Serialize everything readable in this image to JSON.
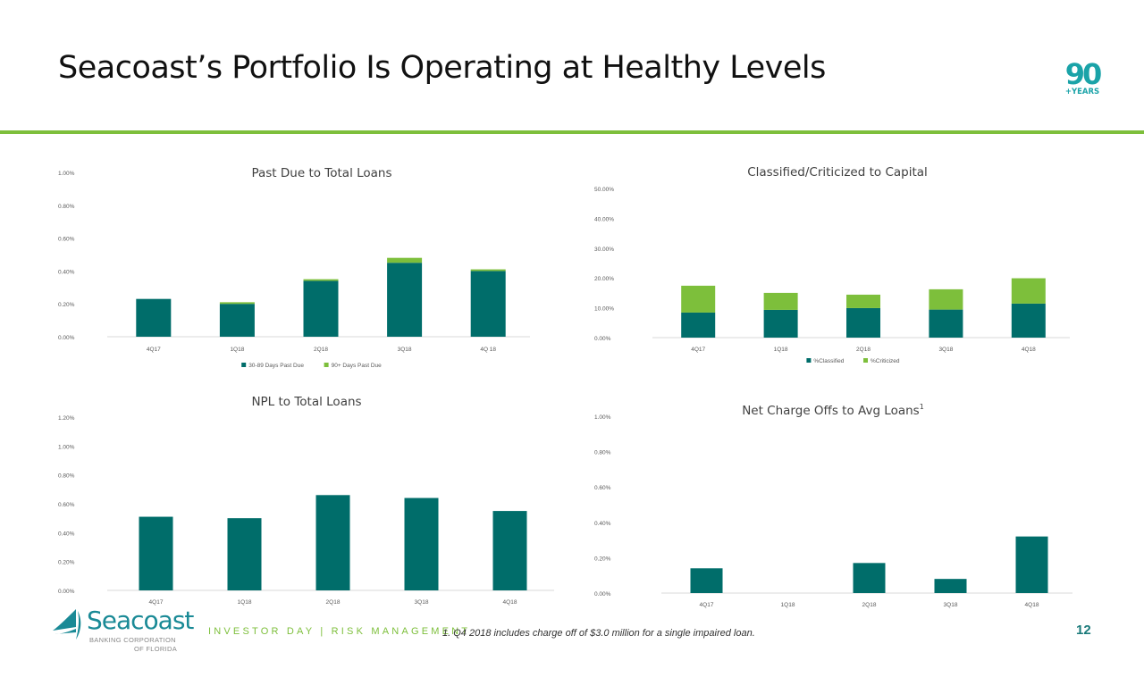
{
  "page": {
    "title": "Seacoast’s Portfolio Is Operating at Healthy Levels",
    "badge": {
      "number": "90",
      "text": "+YEARS"
    },
    "footer": {
      "company_name": "Seacoast",
      "company_sub1": "BANKING CORPORATION",
      "company_sub2": "OF FLORIDA",
      "section": "INVESTOR DAY | RISK MANAGEMENT",
      "footnote": "1. Q4 2018 includes charge off of $3.0 million for a single impaired loan.",
      "page_number": "12"
    }
  },
  "colors": {
    "teal": "#006d6a",
    "green": "#7dbf3b",
    "rule": "#7dbf3b",
    "axis_text": "#595959",
    "gridline": "#d9d9d9"
  },
  "chart_data": [
    {
      "id": "past-due",
      "type": "bar",
      "stacked": true,
      "title": "Past Due to Total Loans",
      "title_superscript": "",
      "categories": [
        "4Q17",
        "1Q18",
        "2Q18",
        "3Q18",
        "4Q 18"
      ],
      "series": [
        {
          "name": "30-89 Days Past Due",
          "color": "#006d6a",
          "values": [
            0.23,
            0.2,
            0.34,
            0.45,
            0.4
          ]
        },
        {
          "name": "90+ Days Past Due",
          "color": "#7dbf3b",
          "values": [
            0.0,
            0.01,
            0.01,
            0.03,
            0.01
          ]
        }
      ],
      "ylim": [
        0,
        1.0
      ],
      "yticks": [
        "0.00%",
        "0.20%",
        "0.40%",
        "0.60%",
        "0.80%",
        "1.00%"
      ],
      "ytick_values": [
        0,
        0.2,
        0.4,
        0.6,
        0.8,
        1.0
      ],
      "xlabel": "",
      "ylabel": "",
      "legend": "bottom",
      "grid": false
    },
    {
      "id": "classified",
      "type": "bar",
      "stacked": true,
      "title": "Classified/Criticized to Capital",
      "title_superscript": "",
      "categories": [
        "4Q17",
        "1Q18",
        "2Q18",
        "3Q18",
        "4Q18"
      ],
      "series": [
        {
          "name": "%Classified",
          "color": "#006d6a",
          "values": [
            8.4,
            9.3,
            9.9,
            9.4,
            11.4
          ]
        },
        {
          "name": "%Criticized",
          "color": "#7dbf3b",
          "values": [
            9.0,
            5.7,
            4.5,
            6.8,
            8.5
          ]
        }
      ],
      "ylim": [
        0,
        50
      ],
      "yticks": [
        "0.00%",
        "10.00%",
        "20.00%",
        "30.00%",
        "40.00%",
        "50.00%"
      ],
      "ytick_values": [
        0,
        10,
        20,
        30,
        40,
        50
      ],
      "xlabel": "",
      "ylabel": "",
      "legend": "bottom",
      "grid": false
    },
    {
      "id": "npl",
      "type": "bar",
      "stacked": false,
      "title": "NPL to Total Loans",
      "title_superscript": "",
      "categories": [
        "4Q17",
        "1Q18",
        "2Q18",
        "3Q18",
        "4Q18"
      ],
      "series": [
        {
          "name": "NPL to Total Loans",
          "color": "#006d6a",
          "values": [
            0.51,
            0.5,
            0.66,
            0.64,
            0.55
          ]
        }
      ],
      "ylim": [
        0,
        1.2
      ],
      "yticks": [
        "0.00%",
        "0.20%",
        "0.40%",
        "0.60%",
        "0.80%",
        "1.00%",
        "1.20%"
      ],
      "ytick_values": [
        0,
        0.2,
        0.4,
        0.6,
        0.8,
        1.0,
        1.2
      ],
      "xlabel": "",
      "ylabel": "",
      "legend": "none",
      "grid": false
    },
    {
      "id": "nco",
      "type": "bar",
      "stacked": false,
      "title": "Net Charge Offs to Avg Loans",
      "title_superscript": "1",
      "categories": [
        "4Q17",
        "1Q18",
        "2Q18",
        "3Q18",
        "4Q18"
      ],
      "series": [
        {
          "name": "Net Charge Offs to Avg Loans",
          "color": "#006d6a",
          "values": [
            0.14,
            0.0,
            0.17,
            0.08,
            0.32
          ]
        }
      ],
      "ylim": [
        0,
        1.0
      ],
      "yticks": [
        "0.00%",
        "0.20%",
        "0.40%",
        "0.60%",
        "0.80%",
        "1.00%"
      ],
      "ytick_values": [
        0,
        0.2,
        0.4,
        0.6,
        0.8,
        1.0
      ],
      "xlabel": "",
      "ylabel": "",
      "legend": "none",
      "grid": false
    }
  ]
}
